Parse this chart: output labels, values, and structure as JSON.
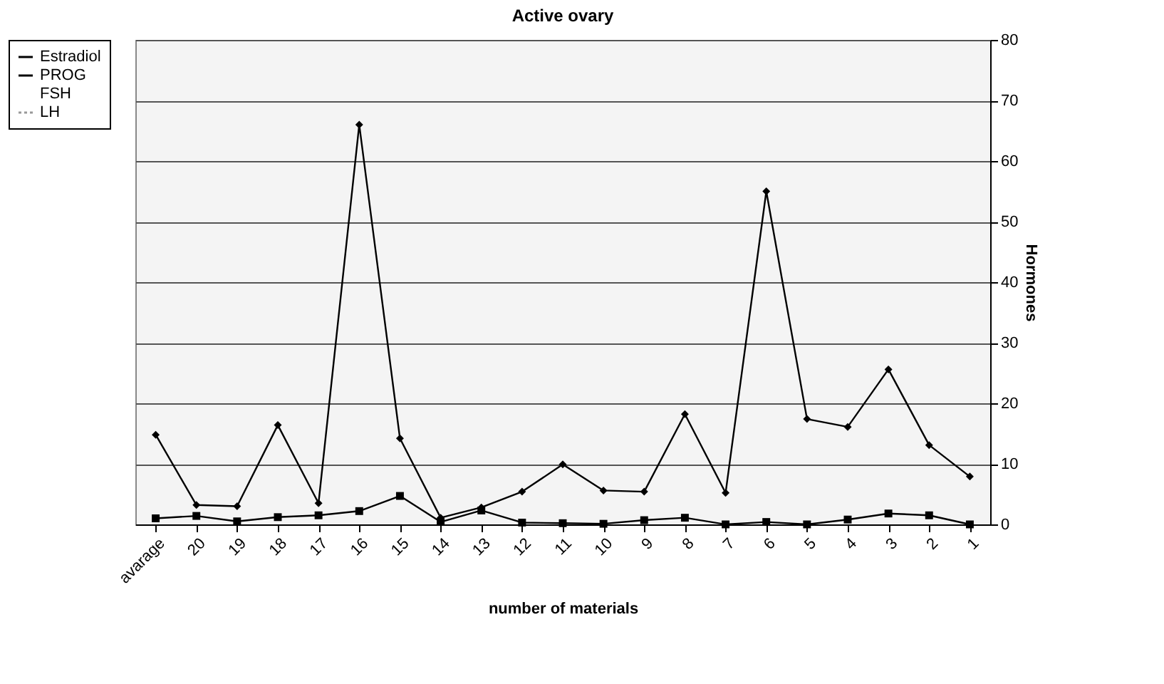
{
  "chart_data": {
    "type": "line",
    "title": "Active ovary",
    "xlabel": "number of materials",
    "ylabel": "Hormones",
    "categories": [
      "avarage",
      "20",
      "19",
      "18",
      "17",
      "16",
      "15",
      "14",
      "13",
      "12",
      "11",
      "10",
      "9",
      "8",
      "7",
      "6",
      "5",
      "4",
      "3",
      "2",
      "1"
    ],
    "series": [
      {
        "name": "Estradiol",
        "color": "#000000",
        "marker": "diamond",
        "line_style": "solid",
        "values": [
          14.8,
          3.2,
          3.0,
          16.4,
          3.5,
          66,
          14.2,
          1.1,
          2.8,
          5.4,
          9.9,
          5.6,
          5.4,
          18.2,
          5.2,
          55,
          17.4,
          16.1,
          25.6,
          13.1,
          7.9
        ]
      },
      {
        "name": "PROG",
        "color": "#000000",
        "marker": "square",
        "line_style": "solid",
        "values": [
          1.0,
          1.4,
          0.5,
          1.2,
          1.5,
          2.2,
          4.7,
          0.4,
          2.3,
          0.3,
          0.2,
          0.1,
          0.7,
          1.1,
          0,
          0.4,
          0,
          0.8,
          1.8,
          1.5,
          0
        ]
      },
      {
        "name": "FSH",
        "marker": "none",
        "line_style": "solid",
        "values": [
          null,
          null,
          null,
          null,
          null,
          null,
          null,
          null,
          null,
          null,
          null,
          null,
          null,
          null,
          null,
          null,
          null,
          null,
          null,
          null,
          null
        ]
      },
      {
        "name": "LH",
        "color": "#999999",
        "marker": "none",
        "line_style": "dotted",
        "values": [
          null,
          null,
          null,
          null,
          null,
          null,
          null,
          null,
          null,
          null,
          null,
          null,
          null,
          null,
          null,
          null,
          null,
          null,
          null,
          null,
          null
        ]
      }
    ],
    "ylim": [
      0,
      80
    ],
    "yticks": [
      0,
      10,
      20,
      30,
      40,
      50,
      60,
      70,
      80
    ],
    "grid": "y",
    "legend": "left"
  }
}
